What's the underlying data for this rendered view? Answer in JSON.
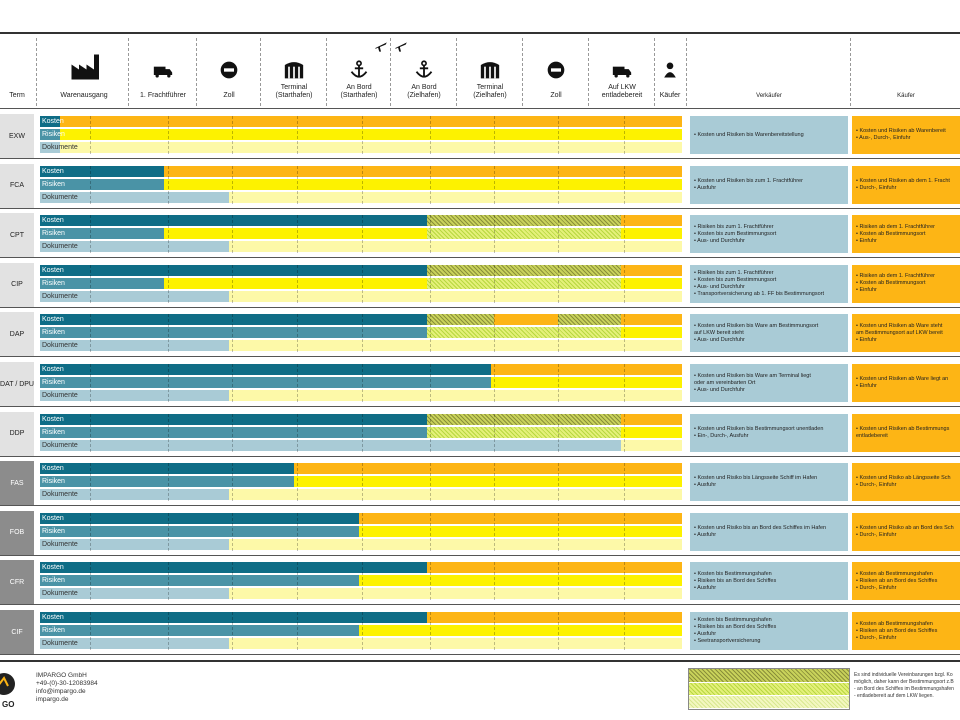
{
  "header": {
    "term_label": "Term",
    "columns": [
      {
        "label": "Warenausgang",
        "icon": "factory-icon"
      },
      {
        "label": "1. Frachtführer",
        "icon": "truck-icon"
      },
      {
        "label": "Zoll",
        "icon": "no-entry-icon"
      },
      {
        "label": "Terminal\n(Starthafen)",
        "icon": "warehouse-icon"
      },
      {
        "label": "An Bord\n(Starthafen)",
        "icon": "anchor-icon"
      },
      {
        "label": "An Bord\n(Zielhafen)",
        "icon": "anchor-icon"
      },
      {
        "label": "Terminal\n(Zielhafen)",
        "icon": "warehouse-icon"
      },
      {
        "label": "Zoll",
        "icon": "no-entry-icon"
      },
      {
        "label": "Auf LKW\nentladebereit",
        "icon": "truck-icon"
      },
      {
        "label": "Käufer",
        "icon": "person-icon"
      }
    ],
    "seller_label": "Verkäufer",
    "buyer_label": "Käufer"
  },
  "row_labels": {
    "kosten": "Kosten",
    "risiken": "Risiken",
    "dokumente": "Dokumente"
  },
  "colors": {
    "seller_dark": "#0f6d86",
    "seller_mid": "#4a93a6",
    "seller_light": "#a9cbd6",
    "buyer_orange": "#fdb515",
    "buyer_yellow": "#fdf200",
    "buyer_pale": "#fdf9a8",
    "term_light": "#e2e2e2",
    "term_dark": "#8c8c8c"
  },
  "terms": [
    {
      "code": "EXW",
      "group": "light",
      "k": 0.4,
      "r": 0.4,
      "d": 0.4,
      "hatch": null,
      "seller": [
        "• Kosten und Risiken bis Warenbereitstellung"
      ],
      "buyer": [
        "• Kosten und Risiken ab Warenbereit",
        "• Aus-, Durch-, Einfuhr"
      ]
    },
    {
      "code": "FCA",
      "group": "light",
      "k": 1.95,
      "r": 1.95,
      "d": 2.95,
      "hatch": null,
      "seller": [
        "• Kosten und Risiken bis zum 1. Frachtführer",
        "• Ausfuhr"
      ],
      "buyer": [
        "• Kosten und Risiken ab dem 1. Fracht",
        "• Durch-, Einfuhr"
      ]
    },
    {
      "code": "CPT",
      "group": "light",
      "k": 5.95,
      "r": 1.95,
      "d": 2.95,
      "hatch": [
        5.95,
        8.95
      ],
      "seller": [
        "• Risiken bis zum 1. Frachtführer",
        "• Kosten bis zum Bestimmungsort",
        "• Aus- und Durchfuhr"
      ],
      "buyer": [
        "• Risiken ab dem 1. Frachtführer",
        "• Kosten ab Bestimmungsort",
        "• Einfuhr"
      ]
    },
    {
      "code": "CIP",
      "group": "light",
      "k": 5.95,
      "r": 1.95,
      "d": 2.95,
      "hatch": [
        5.95,
        8.95
      ],
      "seller": [
        "• Risiken bis zum 1. Frachtführer",
        "• Kosten bis zum Bestimmungsort",
        "• Aus- und Durchfuhr",
        "• Transportversicherung ab 1. FF bis Bestimmungsort"
      ],
      "buyer": [
        "• Risiken ab dem 1. Frachtführer",
        "• Kosten ab Bestimmungsort",
        "• Einfuhr"
      ]
    },
    {
      "code": "DAP",
      "group": "light",
      "k": 5.95,
      "r": 5.95,
      "d": 2.95,
      "hatch": [
        5.95,
        8.95
      ],
      "seller": [
        "• Kosten und Risiken bis Ware am Bestimmungsort",
        "  auf LKW bereit steht",
        "• Aus- und Durchfuhr"
      ],
      "buyer": [
        "• Kosten und Risiken ab Ware steht",
        "  am Bestimmungsort auf LKW bereit",
        "• Einfuhr"
      ]
    },
    {
      "code": "DAT / DPU",
      "group": "light",
      "k": 6.95,
      "r": 6.95,
      "d": 2.95,
      "hatch": null,
      "seller": [
        "• Kosten und Risiken bis Ware am Terminal liegt",
        "  oder am vereinbarten Ort",
        "• Aus- und Durchfuhr"
      ],
      "buyer": [
        "• Kosten und Risiken ab Ware liegt an",
        "• Einfuhr"
      ]
    },
    {
      "code": "DDP",
      "group": "light",
      "k": 5.95,
      "r": 5.95,
      "d": 8.95,
      "hatch": [
        5.95,
        8.95
      ],
      "seller": [
        "• Kosten und Risiken bis Bestimmungsort unentladen",
        "• Ein-, Durch-, Ausfuhr"
      ],
      "buyer": [
        "• Kosten und Risiken ab Bestimmungs",
        "  entladebereit"
      ]
    },
    {
      "code": "FAS",
      "group": "dark",
      "k": 3.95,
      "r": 3.95,
      "d": 2.95,
      "hatch": null,
      "seller": [
        "• Kosten und Risiko bis Längsseite Schiff im Hafen",
        "• Ausfuhr"
      ],
      "buyer": [
        "• Kosten und Risiko ab Längsseite Sch",
        "• Durch-, Einfuhr"
      ]
    },
    {
      "code": "FOB",
      "group": "dark",
      "k": 4.95,
      "r": 4.95,
      "d": 2.95,
      "hatch": null,
      "seller": [
        "• Kosten und Risiko bis an Bord des Schiffes im Hafen",
        "• Ausfuhr"
      ],
      "buyer": [
        "• Kosten und Risiko ab an Bord des Sch",
        "• Durch-, Einfuhr"
      ]
    },
    {
      "code": "CFR",
      "group": "dark",
      "k": 5.95,
      "r": 4.95,
      "d": 2.95,
      "hatch": null,
      "seller": [
        "• Kosten bis Bestimmungshafen",
        "• Risiken bis an Bord des Schiffes",
        "• Ausfuhr"
      ],
      "buyer": [
        "• Kosten ab Bestimmungshafen",
        "• Risiken ab an Bord des Schiffes",
        "• Durch-, Einfuhr"
      ]
    },
    {
      "code": "CIF",
      "group": "dark",
      "k": 5.95,
      "r": 4.95,
      "d": 2.95,
      "hatch": null,
      "seller": [
        "• Kosten bis Bestimmungshafen",
        "• Risiken bis an Bord des Schiffes",
        "• Ausfuhr",
        "• Seetransportversicherung"
      ],
      "buyer": [
        "• Kosten ab Bestimmungshafen",
        "• Risiken ab an Bord des Schiffes",
        "• Durch-, Einfuhr"
      ]
    }
  ],
  "footer": {
    "company": "IMPARGO GmbH",
    "phone": "+49-(0)-30-12083984",
    "email": "info@impargo.de",
    "web": "impargo.de",
    "logo_text": "GO",
    "legend": [
      "Es sind individuelle Vereinbarungen bzgl. Ko",
      "möglich, daher kann der Bestimmungsort z.B",
      "- an Bord des Schiffes im Bestimmungshafen",
      "- entladebereit auf dem LKW liegen."
    ]
  }
}
